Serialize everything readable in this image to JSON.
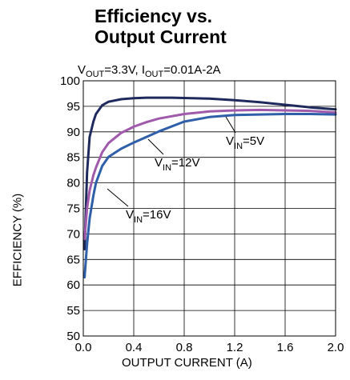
{
  "chart_data": {
    "type": "line",
    "title_line1": "Efficiency vs.",
    "title_line2": "Output Current",
    "subtitle": {
      "v_main": "V",
      "v_sub": "OUT",
      "v_value": "=3.3V, ",
      "i_main": "I",
      "i_sub": "OUT",
      "i_value": "=0.01A-2A"
    },
    "xlabel": "OUTPUT CURRENT (A)",
    "ylabel": "EFFICIENCY (%)",
    "xlim": [
      0.0,
      2.0
    ],
    "ylim": [
      50,
      100
    ],
    "x_ticks": [
      "0.0",
      "0.4",
      "0.8",
      "1.2",
      "1.6",
      "2.0"
    ],
    "y_ticks": [
      "50",
      "55",
      "60",
      "65",
      "70",
      "75",
      "80",
      "85",
      "90",
      "95",
      "100"
    ],
    "grid": true,
    "series": [
      {
        "name": "VIN=5V",
        "label_main": "V",
        "label_sub": "IN",
        "label_value": "=5V",
        "color": "#1f2a5c",
        "x": [
          0.01,
          0.03,
          0.05,
          0.08,
          0.1,
          0.15,
          0.2,
          0.3,
          0.4,
          0.5,
          0.7,
          1.0,
          1.2,
          1.4,
          1.6,
          1.8,
          2.0
        ],
        "y": [
          67,
          82,
          89,
          92,
          93.5,
          95.2,
          95.9,
          96.4,
          96.6,
          96.7,
          96.7,
          96.5,
          96.2,
          95.8,
          95.3,
          94.8,
          94.4
        ]
      },
      {
        "name": "VIN=12V",
        "label_main": "V",
        "label_sub": "IN",
        "label_value": "=12V",
        "color": "#a05aab",
        "x": [
          0.01,
          0.03,
          0.05,
          0.08,
          0.1,
          0.15,
          0.2,
          0.3,
          0.4,
          0.5,
          0.6,
          0.8,
          1.0,
          1.2,
          1.4,
          1.6,
          1.8,
          2.0
        ],
        "y": [
          69,
          75,
          78.5,
          81.5,
          83,
          86,
          87.8,
          89.8,
          91,
          91.9,
          92.6,
          93.5,
          94,
          94.2,
          94.3,
          94.2,
          94.1,
          93.8
        ]
      },
      {
        "name": "VIN=16V",
        "label_main": "V",
        "label_sub": "IN",
        "label_value": "=16V",
        "color": "#2e5fa8",
        "x": [
          0.01,
          0.03,
          0.05,
          0.08,
          0.1,
          0.15,
          0.2,
          0.3,
          0.4,
          0.5,
          0.6,
          0.8,
          1.0,
          1.2,
          1.4,
          1.6,
          1.8,
          2.0
        ],
        "y": [
          61.5,
          68,
          73,
          77.5,
          80,
          83.3,
          85.1,
          86.7,
          87.9,
          89,
          90.1,
          92,
          92.9,
          93.3,
          93.4,
          93.5,
          93.5,
          93.4
        ]
      }
    ]
  }
}
